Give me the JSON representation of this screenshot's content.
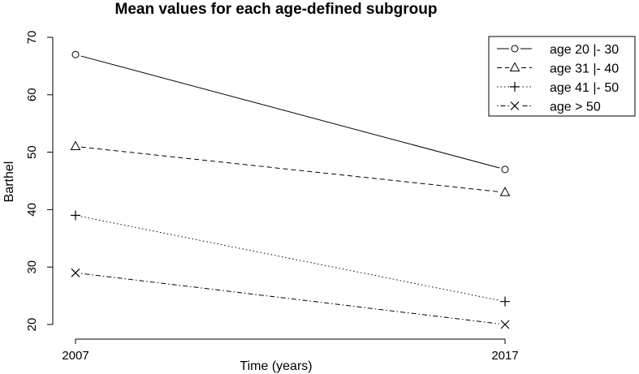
{
  "chart_data": {
    "type": "line",
    "title": "Mean values for each age-defined subgroup",
    "xlabel": "Time (years)",
    "ylabel": "Barthel",
    "x": [
      2007,
      2017
    ],
    "x_tick_labels": [
      "2007",
      "2017"
    ],
    "ylim": [
      20,
      70
    ],
    "y_ticks": [
      20,
      30,
      40,
      50,
      60,
      70
    ],
    "y_tick_labels": [
      "20",
      "30",
      "40",
      "50",
      "60",
      "70"
    ],
    "grid": false,
    "legend_position": "top-right",
    "series": [
      {
        "name": "age 20 |- 30",
        "values": [
          67,
          47
        ],
        "line_style": "solid",
        "marker": "circle"
      },
      {
        "name": "age 31 |- 40",
        "values": [
          51,
          43
        ],
        "line_style": "dashed",
        "marker": "triangle"
      },
      {
        "name": "age 41 |- 50",
        "values": [
          39,
          24
        ],
        "line_style": "dotted",
        "marker": "plus"
      },
      {
        "name": "age > 50",
        "values": [
          29,
          20
        ],
        "line_style": "dotdash",
        "marker": "cross"
      }
    ]
  }
}
